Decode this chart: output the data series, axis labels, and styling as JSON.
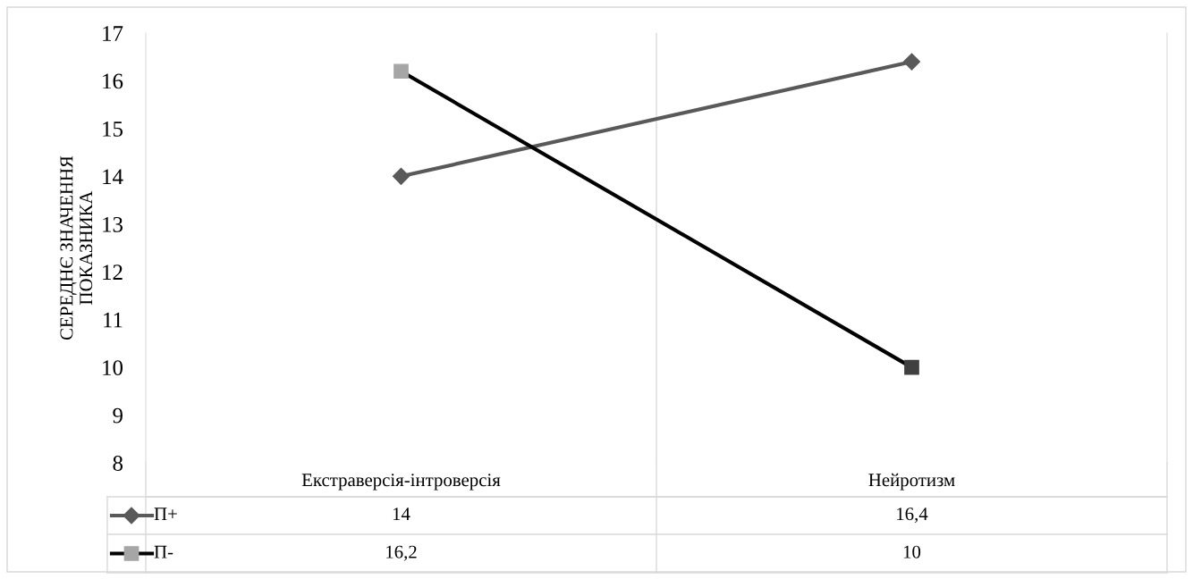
{
  "chart_data": {
    "type": "line",
    "ylabel": "СЕРЕДНЄ ЗНАЧЕННЯ\nПОКАЗНИКА",
    "categories": [
      "Екстраверсія-інтроверсія",
      "Нейротизм"
    ],
    "series": [
      {
        "name": "П+",
        "color": "#595959",
        "colors": [
          "#595959",
          "#595959"
        ],
        "marker": "diamond",
        "values": [
          14,
          16.4
        ],
        "value_labels": [
          "14",
          "16,4"
        ]
      },
      {
        "name": "П-",
        "color": "#000000",
        "colors": [
          "#a6a6a6",
          "#404040"
        ],
        "marker": "square",
        "values": [
          16.2,
          10
        ],
        "value_labels": [
          "16,2",
          "10"
        ]
      }
    ],
    "ylim": [
      8,
      17
    ],
    "yticks": [
      8,
      9,
      10,
      11,
      12,
      13,
      14,
      15,
      16,
      17
    ],
    "grid": "x",
    "legend": "bottom",
    "data_labels": true,
    "line_style": "solid"
  }
}
